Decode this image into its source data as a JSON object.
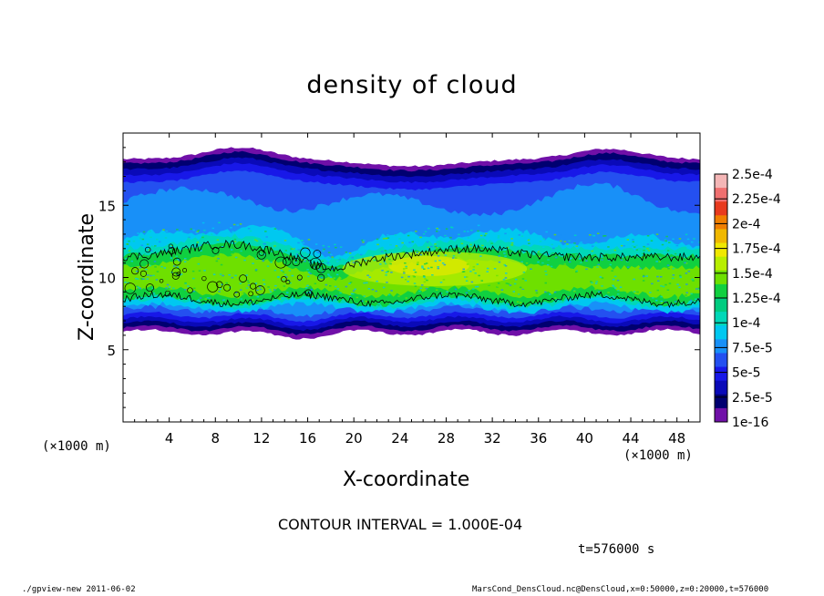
{
  "chart_data": {
    "type": "heatmap",
    "title": "density of cloud",
    "xlabel": "X-coordinate",
    "ylabel": "Z-coordinate",
    "x_unit": "(×1000 m)",
    "y_unit": "(×1000 m)",
    "xlim": [
      0,
      50
    ],
    "ylim": [
      0,
      20
    ],
    "x_ticks": [
      4,
      8,
      12,
      16,
      20,
      24,
      28,
      32,
      36,
      40,
      44,
      48
    ],
    "y_ticks": [
      5,
      10,
      15
    ],
    "contour_interval_text": "CONTOUR INTERVAL = 1.000E-04",
    "time_text": "t=576000 s",
    "colorbar": {
      "labels": [
        "2.5e-4",
        "2.25e-4",
        "2e-4",
        "1.75e-4",
        "1.5e-4",
        "1.25e-4",
        "1e-4",
        "7.5e-5",
        "5e-5",
        "2.5e-5",
        "1e-16"
      ],
      "colors": [
        "#f4b6b6",
        "#f07070",
        "#e83a1e",
        "#f07e00",
        "#f0b800",
        "#f0e800",
        "#b8ee00",
        "#6ee000",
        "#10d040",
        "#00cc80",
        "#00d8b8",
        "#00c8f0",
        "#1890f8",
        "#2450f0",
        "#1818e8",
        "#0a0ab8",
        "#000070",
        "#7010a8"
      ]
    },
    "cloud_layer": {
      "note": "cloud density field between z~6 and z~19 (x1000 m); peak ~1.5e-4 near z~10, x~20-36",
      "z_bottom_approx": 6.2,
      "z_top_approx": 18.2,
      "core_z_range": [
        8.3,
        12.5
      ],
      "contour_level": 0.0001
    }
  },
  "footer": {
    "left": "./gpview-new  2011-06-02",
    "right": "MarsCond_DensCloud.nc@DensCloud,x=0:50000,z=0:20000,t=576000"
  }
}
